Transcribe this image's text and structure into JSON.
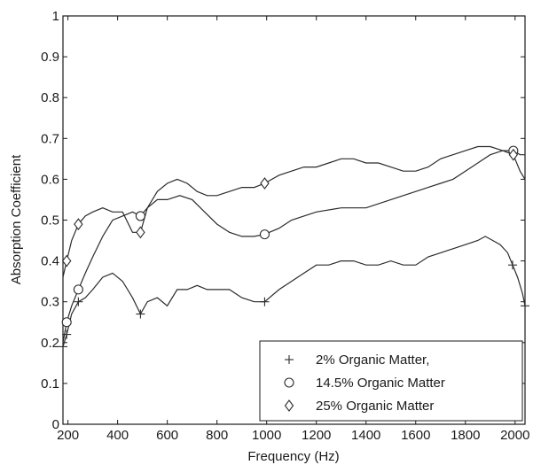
{
  "chart_data": {
    "type": "line",
    "title": "",
    "xlabel": "Frequency (Hz)",
    "ylabel": "Absorption Coefficient",
    "xlim": [
      180,
      2040
    ],
    "ylim": [
      0,
      1
    ],
    "x_ticks": [
      200,
      400,
      600,
      800,
      1000,
      1200,
      1400,
      1600,
      1800,
      2000
    ],
    "x_tick_labels": [
      "200",
      "400",
      "600",
      "800",
      "1000",
      "1200",
      "1400",
      "1600",
      "1800",
      "2000"
    ],
    "y_ticks": [
      0,
      0.1,
      0.2,
      0.3,
      0.4,
      0.5,
      0.6,
      0.7,
      0.8,
      0.9,
      1
    ],
    "y_tick_labels": [
      "0",
      "0.1",
      "0.2",
      "0.3",
      "0.4",
      "0.5",
      "0.6",
      "0.7",
      "0.8",
      "0.9",
      "1"
    ],
    "grid": false,
    "legend": {
      "position": "bottom-right",
      "box": true
    },
    "series": [
      {
        "name": "2% Organic Matter,",
        "marker": "plus",
        "marker_x": [
          180,
          195,
          242,
          492,
          992,
          1990,
          2040
        ],
        "x": [
          180,
          195,
          215,
          242,
          270,
          300,
          340,
          380,
          420,
          460,
          492,
          520,
          560,
          600,
          640,
          680,
          720,
          760,
          800,
          850,
          900,
          950,
          992,
          1050,
          1100,
          1150,
          1200,
          1250,
          1300,
          1350,
          1400,
          1450,
          1500,
          1550,
          1600,
          1650,
          1700,
          1750,
          1800,
          1850,
          1880,
          1910,
          1940,
          1970,
          1990,
          2010,
          2030,
          2040
        ],
        "y": [
          0.19,
          0.22,
          0.27,
          0.3,
          0.31,
          0.33,
          0.36,
          0.37,
          0.35,
          0.31,
          0.27,
          0.3,
          0.31,
          0.29,
          0.33,
          0.33,
          0.34,
          0.33,
          0.33,
          0.33,
          0.31,
          0.3,
          0.3,
          0.33,
          0.35,
          0.37,
          0.39,
          0.39,
          0.4,
          0.4,
          0.39,
          0.39,
          0.4,
          0.39,
          0.39,
          0.41,
          0.42,
          0.43,
          0.44,
          0.45,
          0.46,
          0.45,
          0.44,
          0.42,
          0.39,
          0.36,
          0.32,
          0.29
        ]
      },
      {
        "name": "14.5% Organic Matter",
        "marker": "circle",
        "marker_x": [
          195,
          242,
          492,
          992,
          1993
        ],
        "x": [
          180,
          195,
          215,
          242,
          270,
          300,
          340,
          380,
          420,
          460,
          492,
          520,
          560,
          600,
          650,
          700,
          750,
          800,
          850,
          900,
          950,
          992,
          1050,
          1100,
          1150,
          1200,
          1300,
          1400,
          1500,
          1600,
          1650,
          1700,
          1750,
          1800,
          1850,
          1900,
          1950,
          1993,
          2020,
          2040
        ],
        "y": [
          0.2,
          0.25,
          0.29,
          0.33,
          0.37,
          0.41,
          0.46,
          0.5,
          0.51,
          0.52,
          0.51,
          0.53,
          0.55,
          0.55,
          0.56,
          0.55,
          0.52,
          0.49,
          0.47,
          0.46,
          0.46,
          0.465,
          0.48,
          0.5,
          0.51,
          0.52,
          0.53,
          0.53,
          0.55,
          0.57,
          0.58,
          0.59,
          0.6,
          0.62,
          0.64,
          0.66,
          0.67,
          0.67,
          0.66,
          0.66
        ]
      },
      {
        "name": "25% Organic Matter",
        "marker": "diamond",
        "marker_x": [
          195,
          242,
          492,
          992,
          1993
        ],
        "x": [
          180,
          195,
          215,
          242,
          270,
          300,
          340,
          380,
          420,
          460,
          492,
          520,
          560,
          600,
          640,
          680,
          720,
          760,
          800,
          850,
          900,
          950,
          992,
          1050,
          1100,
          1150,
          1200,
          1250,
          1300,
          1350,
          1400,
          1450,
          1500,
          1550,
          1600,
          1650,
          1700,
          1750,
          1800,
          1850,
          1900,
          1950,
          1993,
          2020,
          2040
        ],
        "y": [
          0.36,
          0.4,
          0.45,
          0.49,
          0.51,
          0.52,
          0.53,
          0.52,
          0.52,
          0.47,
          0.47,
          0.53,
          0.57,
          0.59,
          0.6,
          0.59,
          0.57,
          0.56,
          0.56,
          0.57,
          0.58,
          0.58,
          0.59,
          0.61,
          0.62,
          0.63,
          0.63,
          0.64,
          0.65,
          0.65,
          0.64,
          0.64,
          0.63,
          0.62,
          0.62,
          0.63,
          0.65,
          0.66,
          0.67,
          0.68,
          0.68,
          0.67,
          0.66,
          0.62,
          0.6
        ]
      }
    ]
  }
}
